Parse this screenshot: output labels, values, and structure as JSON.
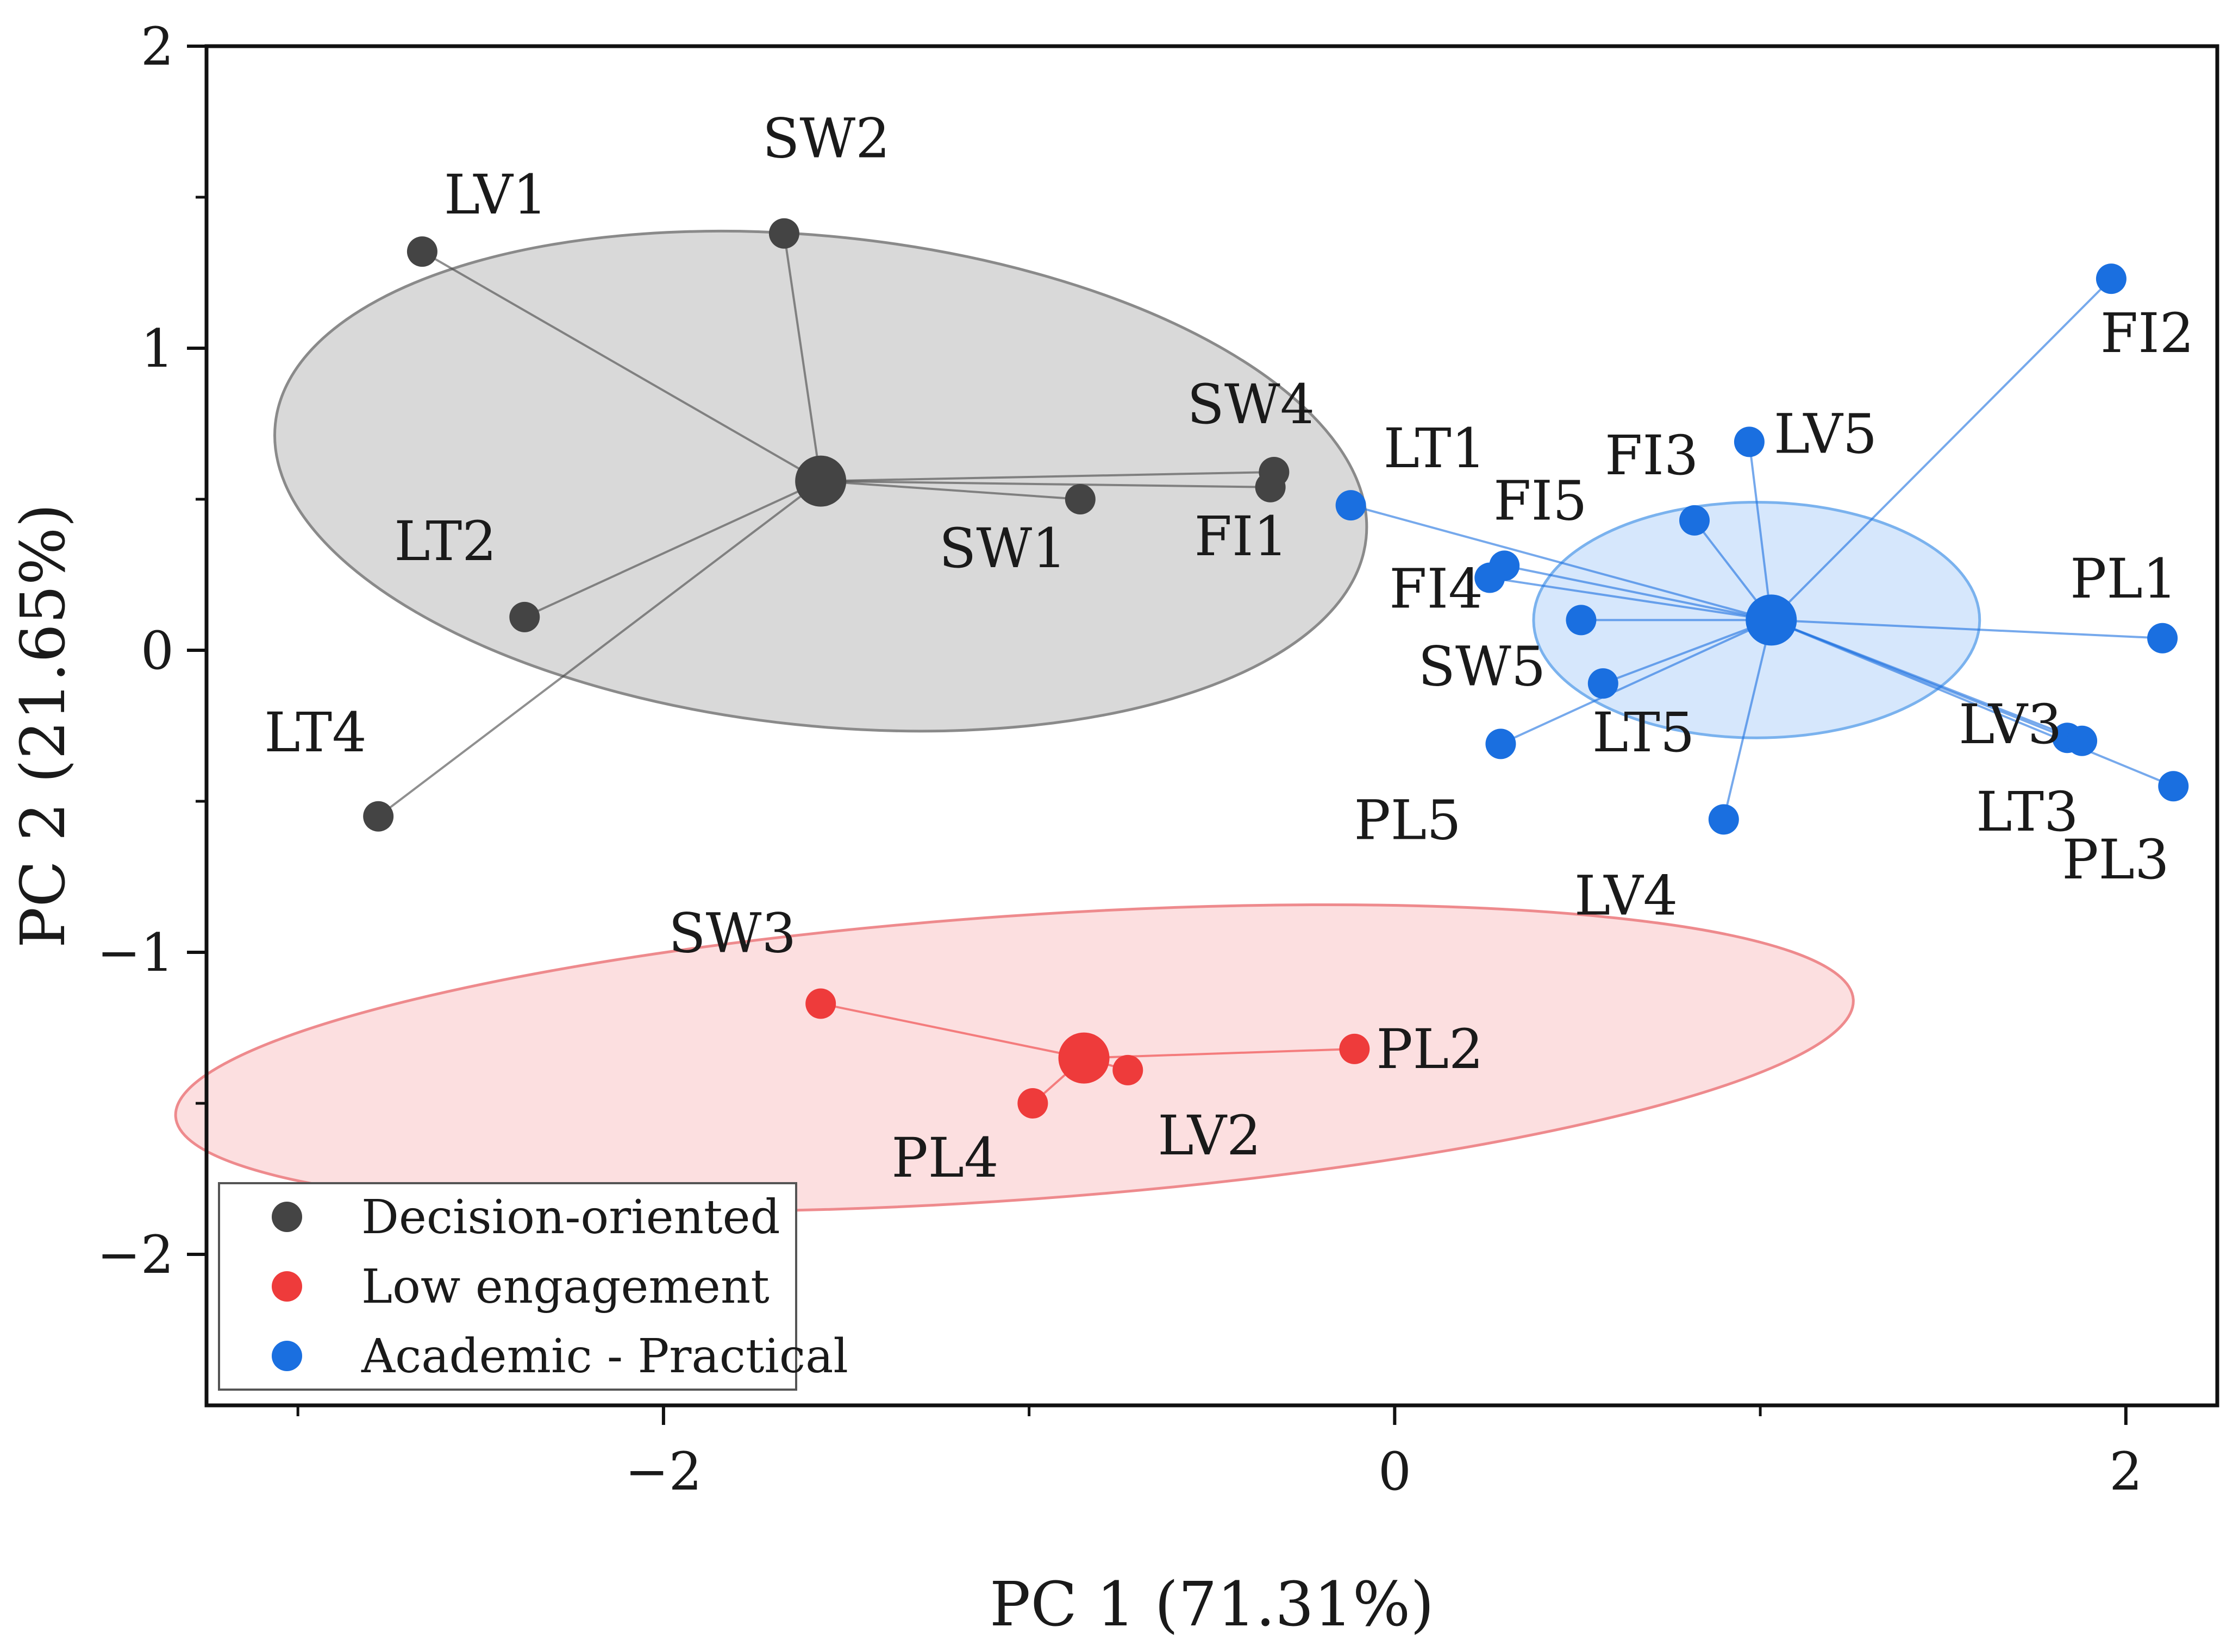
{
  "chart_data": {
    "type": "scatter",
    "xlabel": "PC 1 (71.31%)",
    "ylabel": "PC 2 (21.65%)",
    "xlim": [
      -3.25,
      2.25
    ],
    "ylim": [
      -2.5,
      2
    ],
    "xticks": [
      -2,
      0,
      2
    ],
    "xtick_labels": [
      "−2",
      "0",
      "2"
    ],
    "xminor": [
      -3,
      -1,
      1
    ],
    "yticks": [
      -2,
      -1,
      0,
      1,
      2
    ],
    "ytick_labels": [
      "−2",
      "−1",
      "0",
      "1",
      "2"
    ],
    "yminor": [
      -1.5,
      -0.5,
      0.5,
      1.5
    ],
    "legend_position": "bottom-left",
    "groups": [
      {
        "name": "Decision-oriented",
        "color": "#444444",
        "ellipse_fill": "#d2d2d2",
        "ellipse_stroke": "#8a8a8a",
        "centroid": [
          -1.57,
          0.56
        ],
        "ellipse": {
          "cx": -1.57,
          "cy": 0.56,
          "rx": 1.5,
          "ry": 0.81,
          "rotate_deg": 6
        },
        "points": [
          {
            "label": "LV1",
            "x": -2.66,
            "y": 1.32
          },
          {
            "label": "SW2",
            "x": -1.67,
            "y": 1.38
          },
          {
            "label": "SW4",
            "x": -0.33,
            "y": 0.59
          },
          {
            "label": "FI1",
            "x": -0.34,
            "y": 0.54
          },
          {
            "label": "SW1",
            "x": -0.86,
            "y": 0.5
          },
          {
            "label": "LT2",
            "x": -2.38,
            "y": 0.11
          },
          {
            "label": "LT4",
            "x": -2.78,
            "y": -0.55
          }
        ]
      },
      {
        "name": "Low engagement",
        "color": "#ee3b3b",
        "ellipse_fill": "#fcd9da",
        "ellipse_stroke": "#ee8a8d",
        "centroid": [
          -0.85,
          -1.35
        ],
        "ellipse": {
          "cx": -1.04,
          "cy": -1.35,
          "rx": 2.3,
          "ry": 0.47,
          "rotate_deg": -4
        },
        "points": [
          {
            "label": "SW3",
            "x": -1.57,
            "y": -1.17
          },
          {
            "label": "PL2",
            "x": -0.11,
            "y": -1.32
          },
          {
            "label": "LV2",
            "x": -0.73,
            "y": -1.39
          },
          {
            "label": "PL4",
            "x": -0.99,
            "y": -1.5
          }
        ]
      },
      {
        "name": "Academic - Practical",
        "color": "#1a6fe0",
        "ellipse_fill": "#cfe3fb",
        "ellipse_stroke": "#7ab2ee",
        "centroid": [
          1.03,
          0.1
        ],
        "ellipse": {
          "cx": 0.99,
          "cy": 0.1,
          "rx": 0.61,
          "ry": 0.39,
          "rotate_deg": 0
        },
        "points": [
          {
            "label": "FI2",
            "x": 1.96,
            "y": 1.23
          },
          {
            "label": "LV5",
            "x": 0.97,
            "y": 0.69
          },
          {
            "label": "LT1",
            "x": -0.12,
            "y": 0.48
          },
          {
            "label": "FI3",
            "x": 0.82,
            "y": 0.43
          },
          {
            "label": "FI5",
            "x": 0.3,
            "y": 0.28
          },
          {
            "label": "FI4",
            "x": 0.26,
            "y": 0.24
          },
          {
            "label": "PL1",
            "x": 2.1,
            "y": 0.04
          },
          {
            "label": "SW5",
            "x": 0.51,
            "y": 0.1
          },
          {
            "label": "LT5",
            "x": 0.57,
            "y": -0.11
          },
          {
            "label": "LV3",
            "x": 1.84,
            "y": -0.29
          },
          {
            "label": "LT3",
            "x": 1.88,
            "y": -0.3
          },
          {
            "label": "PL3",
            "x": 2.13,
            "y": -0.45
          },
          {
            "label": "PL5",
            "x": 0.29,
            "y": -0.31
          },
          {
            "label": "LV4",
            "x": 0.9,
            "y": -0.56
          }
        ]
      }
    ]
  }
}
